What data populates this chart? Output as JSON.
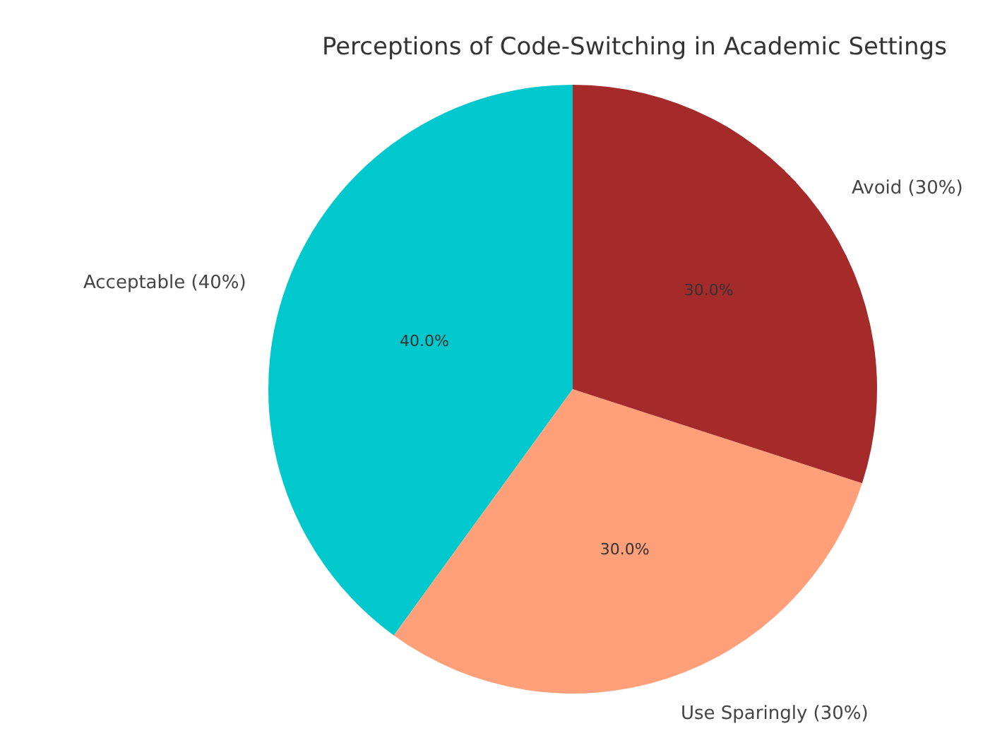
{
  "chart_data": {
    "type": "pie",
    "title": "Perceptions of Code-Switching in Academic Settings",
    "categories": [
      "Acceptable (40%)",
      "Use Sparingly (30%)",
      "Avoid (30%)"
    ],
    "values": [
      40,
      30,
      30
    ],
    "colors": [
      "#00c8cc",
      "#ffa07a",
      "#a52a2a"
    ],
    "value_labels": [
      "40.0%",
      "30.0%",
      "30.0%"
    ],
    "legend": false
  }
}
